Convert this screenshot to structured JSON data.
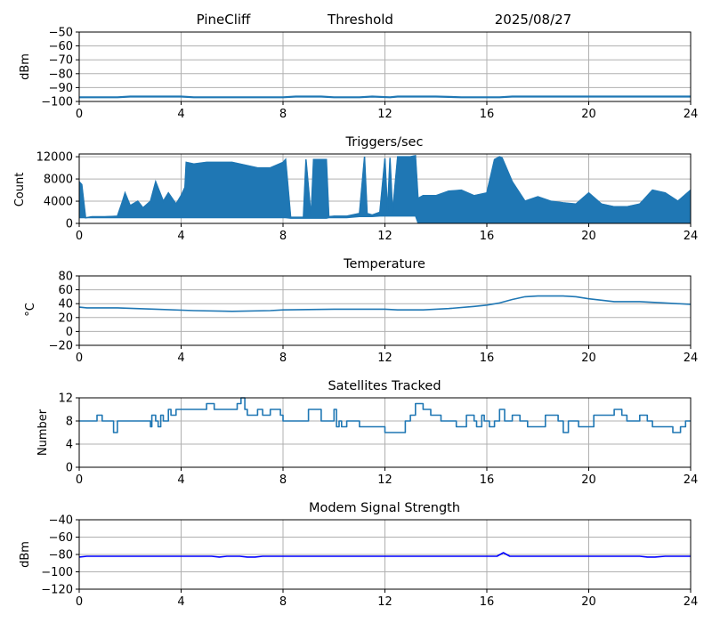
{
  "header": {
    "station": "PineCliff",
    "mode": "Threshold",
    "date": "2025/08/27"
  },
  "colors": {
    "series": "#1f77b4",
    "modem": "#0000ff",
    "grid": "#b0b0b0"
  },
  "chart_data": [
    {
      "type": "line",
      "title": "",
      "xlabel": "",
      "ylabel": "dBm",
      "xlim": [
        0,
        24
      ],
      "ylim": [
        -100,
        -50
      ],
      "xticks": [
        0,
        4,
        8,
        12,
        16,
        20,
        24
      ],
      "yticks": [
        -50,
        -60,
        -70,
        -80,
        -90,
        -100
      ],
      "ytick_labels": [
        "−50",
        "−60",
        "−70",
        "−80",
        "−90",
        "−100"
      ],
      "grid": true,
      "series": [
        {
          "color": "#1f77b4",
          "x": [
            0,
            1.5,
            2.0,
            4.0,
            4.5,
            8.0,
            8.5,
            9.5,
            10.0,
            11.0,
            11.5,
            12.2,
            12.5,
            14.0,
            15.0,
            16.5,
            17.0,
            20.0,
            24.0
          ],
          "y": [
            -97,
            -97,
            -96.5,
            -96.5,
            -97,
            -97,
            -96.5,
            -96.5,
            -97,
            -97,
            -96.5,
            -97,
            -96.5,
            -96.5,
            -97,
            -97,
            -96.5,
            -96.5,
            -96.5
          ]
        }
      ]
    },
    {
      "type": "area",
      "title": "Triggers/sec",
      "xlabel": "",
      "ylabel": "Count",
      "xlim": [
        0,
        24
      ],
      "ylim": [
        0,
        12500
      ],
      "xticks": [
        0,
        4,
        8,
        12,
        16,
        20,
        24
      ],
      "yticks": [
        0,
        4000,
        8000,
        12000
      ],
      "ytick_labels": [
        "0",
        "4000",
        "8000",
        "12000"
      ],
      "grid": true,
      "series": [
        {
          "color": "#1f77b4",
          "x": [
            0,
            0.1,
            0.25,
            0.5,
            1.0,
            1.5,
            1.7,
            1.8,
            2.0,
            2.3,
            2.5,
            2.8,
            3.0,
            3.3,
            3.5,
            3.8,
            4.0,
            4.15,
            4.2,
            4.5,
            5.0,
            5.5,
            6.0,
            6.5,
            7.0,
            7.5,
            8.0,
            8.1,
            8.3,
            8.8,
            8.9,
            9.1,
            9.2,
            9.4,
            9.5,
            9.7,
            9.8,
            10.0,
            10.5,
            11.0,
            11.2,
            11.3,
            11.5,
            11.8,
            12.0,
            12.1,
            12.2,
            12.3,
            12.5,
            12.7,
            12.8,
            13.0,
            13.2,
            13.3,
            13.5,
            14.0,
            14.5,
            15.0,
            15.5,
            16.0,
            16.3,
            16.5,
            16.6,
            17.0,
            17.5,
            18.0,
            18.5,
            19.0,
            19.5,
            20.0,
            20.5,
            21.0,
            21.5,
            22.0,
            22.5,
            23.0,
            23.5,
            24.0
          ],
          "y": [
            7500,
            7000,
            1000,
            1200,
            1200,
            1300,
            4000,
            5500,
            3200,
            4000,
            2800,
            4000,
            7500,
            4000,
            5500,
            3500,
            5000,
            6500,
            11000,
            10700,
            11000,
            11000,
            11000,
            10500,
            10000,
            10000,
            11000,
            11500,
            1100,
            1100,
            11500,
            1200,
            11500,
            11500,
            11500,
            11500,
            1200,
            1300,
            1300,
            1800,
            12000,
            1800,
            1500,
            2000,
            11700,
            2000,
            11800,
            2000,
            12000,
            12000,
            12000,
            12000,
            12200,
            4500,
            5000,
            5000,
            5800,
            6000,
            5000,
            5500,
            11500,
            12000,
            11800,
            7500,
            4000,
            4800,
            4000,
            3700,
            3500,
            5500,
            3500,
            3000,
            3000,
            3500,
            6000,
            5500,
            4000,
            6000
          ],
          "floor": [
            1000,
            1000,
            1000,
            1000,
            1000,
            1000,
            1000,
            1000,
            1000,
            1000,
            1000,
            1000,
            1000,
            1000,
            1000,
            1000,
            1000,
            1000,
            1000,
            1000,
            1000,
            1000,
            1000,
            1000,
            1000,
            1000,
            1000,
            1000,
            900,
            900,
            900,
            900,
            900,
            900,
            900,
            900,
            1000,
            1000,
            1000,
            1200,
            1200,
            1200,
            1200,
            1300,
            1300,
            1300,
            1300,
            1300,
            1300,
            1300,
            1300,
            1300,
            1300,
            0,
            0,
            0,
            0,
            0,
            0,
            0,
            0,
            0,
            0,
            0,
            0,
            0,
            0,
            0,
            0,
            0,
            0,
            0,
            0,
            0,
            0,
            0,
            0,
            0
          ]
        }
      ]
    },
    {
      "type": "line",
      "title": "Temperature",
      "xlabel": "",
      "ylabel": "°C",
      "xlim": [
        0,
        24
      ],
      "ylim": [
        -20,
        80
      ],
      "xticks": [
        0,
        4,
        8,
        12,
        16,
        20,
        24
      ],
      "yticks": [
        -20,
        0,
        20,
        40,
        60,
        80
      ],
      "ytick_labels": [
        "−20",
        "0",
        "20",
        "40",
        "60",
        "80"
      ],
      "grid": true,
      "series": [
        {
          "color": "#1f77b4",
          "x": [
            0,
            0.3,
            1.5,
            3.0,
            4.5,
            6.0,
            7.5,
            8.0,
            10.0,
            12.0,
            12.5,
            13.5,
            14.5,
            15.5,
            16.0,
            16.5,
            17.0,
            17.5,
            18.0,
            19.0,
            19.5,
            20.0,
            20.5,
            21.0,
            22.0,
            23.0,
            24.0
          ],
          "y": [
            35,
            34,
            34,
            32,
            30,
            29,
            30,
            31,
            32,
            32,
            31,
            31,
            33,
            36,
            38,
            41,
            46,
            50,
            51,
            51,
            50,
            47,
            45,
            43,
            43,
            41,
            39
          ]
        }
      ]
    },
    {
      "type": "line",
      "step": true,
      "title": "Satellites Tracked",
      "xlabel": "",
      "ylabel": "Number",
      "xlim": [
        0,
        24
      ],
      "ylim": [
        0,
        12
      ],
      "xticks": [
        0,
        4,
        8,
        12,
        16,
        20,
        24
      ],
      "yticks": [
        0,
        4,
        8,
        12
      ],
      "ytick_labels": [
        "0",
        "4",
        "8",
        "12"
      ],
      "grid": true,
      "series": [
        {
          "color": "#1f77b4",
          "x": [
            0,
            0.5,
            0.7,
            0.9,
            1.3,
            1.35,
            1.5,
            2.2,
            2.5,
            2.8,
            2.85,
            3.0,
            3.1,
            3.2,
            3.3,
            3.5,
            3.6,
            3.8,
            4.0,
            4.2,
            5.0,
            5.3,
            6.0,
            6.2,
            6.35,
            6.5,
            6.6,
            7.0,
            7.2,
            7.5,
            7.9,
            8.0,
            8.6,
            8.8,
            9.0,
            9.5,
            9.6,
            9.7,
            10.0,
            10.1,
            10.2,
            10.3,
            10.5,
            11.0,
            11.1,
            11.4,
            11.5,
            11.7,
            11.8,
            12.0,
            12.2,
            12.4,
            12.5,
            12.8,
            13.0,
            13.2,
            13.5,
            13.8,
            14.0,
            14.2,
            14.5,
            14.8,
            15.0,
            15.2,
            15.5,
            15.6,
            15.8,
            15.9,
            16.1,
            16.3,
            16.5,
            16.7,
            16.8,
            17.0,
            17.3,
            17.6,
            18.0,
            18.3,
            18.6,
            18.8,
            19.0,
            19.2,
            19.4,
            19.6,
            20.0,
            20.2,
            20.5,
            21.0,
            21.3,
            21.5,
            21.8,
            22.0,
            22.3,
            22.5,
            22.8,
            23.0,
            23.3,
            23.6,
            23.8,
            24.0
          ],
          "y": [
            8,
            8,
            9,
            8,
            8,
            6,
            8,
            8,
            8,
            7,
            9,
            8,
            7,
            9,
            8,
            10,
            9,
            10,
            10,
            10,
            11,
            10,
            10,
            11,
            12,
            10,
            9,
            10,
            9,
            10,
            9,
            8,
            8,
            8,
            10,
            8,
            8,
            8,
            10,
            7,
            8,
            7,
            8,
            7,
            7,
            7,
            7,
            7,
            7,
            6,
            6,
            6,
            6,
            8,
            9,
            11,
            10,
            9,
            9,
            8,
            8,
            7,
            7,
            9,
            8,
            7,
            9,
            8,
            7,
            8,
            10,
            8,
            8,
            9,
            8,
            7,
            7,
            9,
            9,
            8,
            6,
            8,
            8,
            7,
            7,
            9,
            9,
            10,
            9,
            8,
            8,
            9,
            8,
            7,
            7,
            7,
            6,
            7,
            8,
            8
          ]
        }
      ]
    },
    {
      "type": "line",
      "title": "Modem Signal Strength",
      "xlabel": "",
      "ylabel": "dBm",
      "xlim": [
        0,
        24
      ],
      "ylim": [
        -120,
        -40
      ],
      "xticks": [
        0,
        4,
        8,
        12,
        16,
        20,
        24
      ],
      "yticks": [
        -40,
        -60,
        -80,
        -100,
        -120
      ],
      "ytick_labels": [
        "−40",
        "−60",
        "−80",
        "−100",
        "−120"
      ],
      "grid": true,
      "series": [
        {
          "color": "#0000ff",
          "x": [
            0,
            0.3,
            5.2,
            5.5,
            5.8,
            6.3,
            6.6,
            6.9,
            7.2,
            16.0,
            16.4,
            16.65,
            16.9,
            17.2,
            22.0,
            22.3,
            22.6,
            23.0,
            24.0
          ],
          "y": [
            -83,
            -82,
            -82,
            -83,
            -82,
            -82,
            -83,
            -83,
            -82,
            -82,
            -82,
            -78,
            -82,
            -82,
            -82,
            -83,
            -83,
            -82,
            -82
          ]
        }
      ]
    }
  ]
}
